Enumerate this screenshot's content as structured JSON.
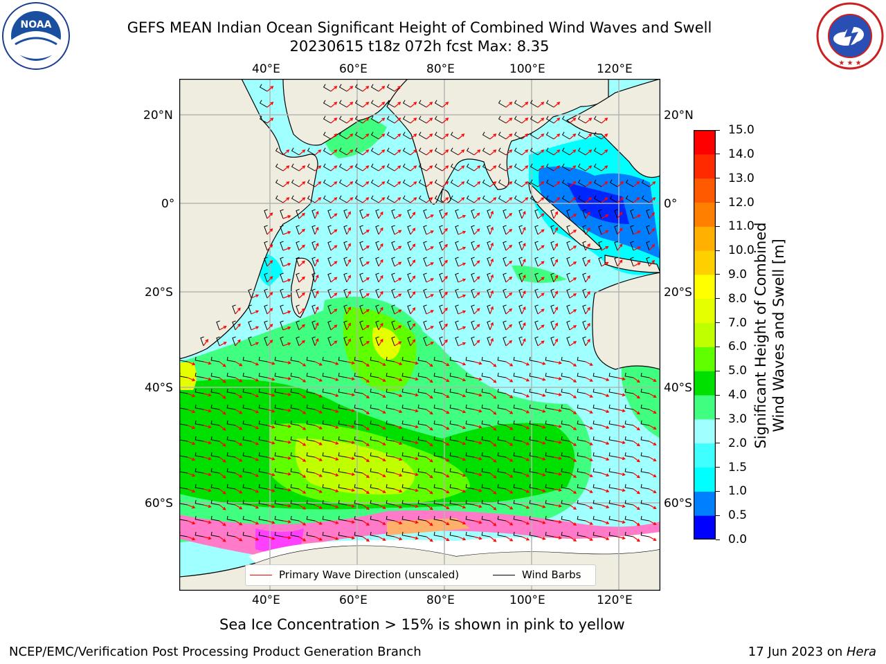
{
  "title": {
    "line1": "GEFS MEAN Indian Ocean Significant Height of Combined Wind Waves and Swell",
    "line2": "20230615 t18z 072h fcst   Max: 8.35"
  },
  "logos": {
    "left": {
      "text": "NOAA",
      "ring_text": "NATIONAL OCEANIC AND ATMOSPHERIC ADMINISTRATION • U.S. DEPARTMENT OF COMMERCE"
    },
    "right": {
      "ring_text": "NATIONAL WEATHER SERVICE"
    }
  },
  "map": {
    "lon_ticks_top": [
      "40°E",
      "60°E",
      "80°E",
      "100°E",
      "120°E"
    ],
    "lon_ticks_bottom": [
      "40°E",
      "60°E",
      "80°E",
      "100°E",
      "120°E"
    ],
    "lat_ticks_left": [
      "20°N",
      "0°",
      "20°S",
      "40°S",
      "60°S"
    ],
    "lat_ticks_right": [
      "20°N",
      "0°",
      "20°S",
      "40°S",
      "60°S"
    ],
    "lon_values": [
      40,
      60,
      80,
      100,
      120
    ],
    "lat_values": [
      20,
      0,
      -20,
      -40,
      -60
    ],
    "colors": {
      "land": "#efede0",
      "ocean_low": "#a0ffff",
      "grid": "#b4b4b4",
      "arrow": "#ff0000",
      "barb": "#000000"
    }
  },
  "legend": {
    "primary_wave": "Primary Wave Direction (unscaled)",
    "wind_barbs": "Wind Barbs"
  },
  "colorbar": {
    "label_line1": "Significant Height of Combined",
    "label_line2": "Wind Waves and Swell [m]",
    "ticks": [
      "15.0",
      "14.0",
      "13.0",
      "12.0",
      "11.0",
      "10.0",
      "9.0",
      "8.0",
      "7.0",
      "6.0",
      "5.0",
      "4.0",
      "3.0",
      "2.0",
      "1.5",
      "1.0",
      "0.5",
      "0.0"
    ],
    "colors_bottom_to_top": [
      "#0000ff",
      "#0080ff",
      "#00ffff",
      "#40ffff",
      "#a0ffff",
      "#40ff80",
      "#00e000",
      "#60ff00",
      "#c0ff00",
      "#e6ff00",
      "#ffff00",
      "#ffd000",
      "#ffb000",
      "#ff8000",
      "#ff5a00",
      "#ff2a00",
      "#ff0000"
    ]
  },
  "ice_note": "Sea Ice Concentration > 15% is shown in pink to yellow",
  "footer": {
    "left": "NCEP/EMC/Verification Post Processing Product Generation Branch",
    "right_prefix": "17 Jun 2023 on ",
    "right_host": "Hera"
  }
}
